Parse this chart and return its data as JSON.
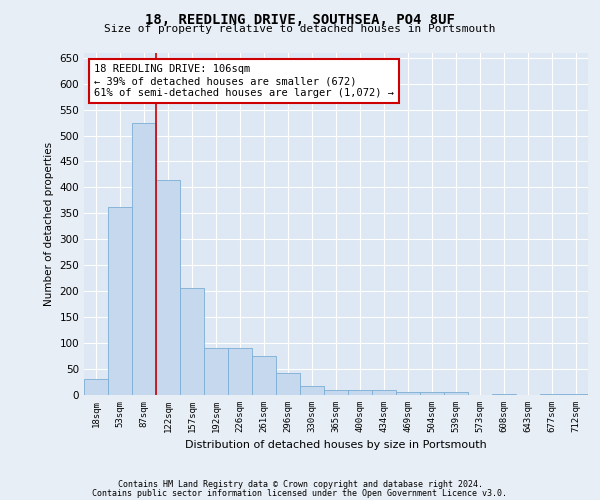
{
  "title": "18, REEDLING DRIVE, SOUTHSEA, PO4 8UF",
  "subtitle": "Size of property relative to detached houses in Portsmouth",
  "xlabel": "Distribution of detached houses by size in Portsmouth",
  "ylabel": "Number of detached properties",
  "bar_color": "#c5d8ee",
  "bar_edge_color": "#7aadd4",
  "background_color": "#dde8f4",
  "fig_background_color": "#e8eef6",
  "grid_color": "#ffffff",
  "categories": [
    "18sqm",
    "53sqm",
    "87sqm",
    "122sqm",
    "157sqm",
    "192sqm",
    "226sqm",
    "261sqm",
    "296sqm",
    "330sqm",
    "365sqm",
    "400sqm",
    "434sqm",
    "469sqm",
    "504sqm",
    "539sqm",
    "573sqm",
    "608sqm",
    "643sqm",
    "677sqm",
    "712sqm"
  ],
  "values": [
    30,
    362,
    524,
    415,
    207,
    90,
    90,
    75,
    42,
    18,
    10,
    10,
    10,
    5,
    5,
    5,
    0,
    2,
    0,
    2,
    2
  ],
  "ylim": [
    0,
    660
  ],
  "yticks": [
    0,
    50,
    100,
    150,
    200,
    250,
    300,
    350,
    400,
    450,
    500,
    550,
    600,
    650
  ],
  "red_line_x": 2.5,
  "annotation_text": "18 REEDLING DRIVE: 106sqm\n← 39% of detached houses are smaller (672)\n61% of semi-detached houses are larger (1,072) →",
  "annotation_box_color": "#ffffff",
  "annotation_box_edge": "#cc0000",
  "footer_line1": "Contains HM Land Registry data © Crown copyright and database right 2024.",
  "footer_line2": "Contains public sector information licensed under the Open Government Licence v3.0."
}
